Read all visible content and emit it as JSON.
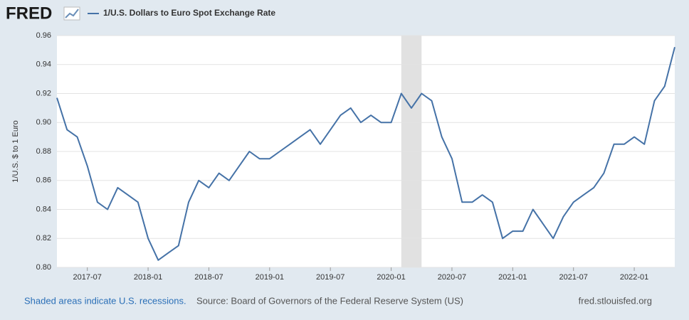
{
  "brand": "FRED",
  "chart_data": {
    "type": "line",
    "ylabel": "1/U.S. $ to 1 Euro",
    "x": [
      "2017-04",
      "2017-05",
      "2017-06",
      "2017-07",
      "2017-08",
      "2017-09",
      "2017-10",
      "2017-11",
      "2017-12",
      "2018-01",
      "2018-02",
      "2018-03",
      "2018-04",
      "2018-05",
      "2018-06",
      "2018-07",
      "2018-08",
      "2018-09",
      "2018-10",
      "2018-11",
      "2018-12",
      "2019-01",
      "2019-02",
      "2019-03",
      "2019-04",
      "2019-05",
      "2019-06",
      "2019-07",
      "2019-08",
      "2019-09",
      "2019-10",
      "2019-11",
      "2019-12",
      "2020-01",
      "2020-02",
      "2020-03",
      "2020-04",
      "2020-05",
      "2020-06",
      "2020-07",
      "2020-08",
      "2020-09",
      "2020-10",
      "2020-11",
      "2020-12",
      "2021-01",
      "2021-02",
      "2021-03",
      "2021-04",
      "2021-05",
      "2021-06",
      "2021-07",
      "2021-08",
      "2021-09",
      "2021-10",
      "2021-11",
      "2021-12",
      "2022-01",
      "2022-02",
      "2022-03",
      "2022-04",
      "2022-05"
    ],
    "series": [
      {
        "name": "1/U.S. Dollars to Euro Spot Exchange Rate",
        "color": "#4572a7",
        "values": [
          0.917,
          0.895,
          0.89,
          0.87,
          0.845,
          0.84,
          0.855,
          0.85,
          0.845,
          0.82,
          0.805,
          0.81,
          0.815,
          0.845,
          0.86,
          0.855,
          0.865,
          0.86,
          0.87,
          0.88,
          0.875,
          0.875,
          0.88,
          0.885,
          0.89,
          0.895,
          0.885,
          0.895,
          0.905,
          0.91,
          0.9,
          0.905,
          0.9,
          0.9,
          0.92,
          0.91,
          0.92,
          0.915,
          0.89,
          0.875,
          0.845,
          0.845,
          0.85,
          0.845,
          0.82,
          0.825,
          0.825,
          0.84,
          0.83,
          0.82,
          0.835,
          0.845,
          0.85,
          0.855,
          0.865,
          0.885,
          0.885,
          0.89,
          0.885,
          0.915,
          0.925,
          0.952
        ]
      }
    ],
    "recessions": [
      [
        "2020-02",
        "2020-04"
      ]
    ],
    "xlim": [
      "2017-04",
      "2022-05"
    ],
    "xticks": [
      "2017-07",
      "2018-01",
      "2018-07",
      "2019-01",
      "2019-07",
      "2020-01",
      "2020-07",
      "2021-01",
      "2021-07",
      "2022-01"
    ],
    "ylim": [
      0.8,
      0.96
    ],
    "yticks": [
      {
        "value": 0.8,
        "label": "0.80"
      },
      0.82,
      0.84,
      0.86,
      0.88,
      {
        "value": 0.9,
        "label": "0.90"
      },
      0.92,
      0.94,
      0.96
    ],
    "grid": true
  },
  "footer": {
    "recession_note": "Shaded areas indicate U.S. recessions.",
    "source": "Source: Board of Governors of the Federal Reserve System (US)",
    "site": "fred.stlouisfed.org"
  }
}
